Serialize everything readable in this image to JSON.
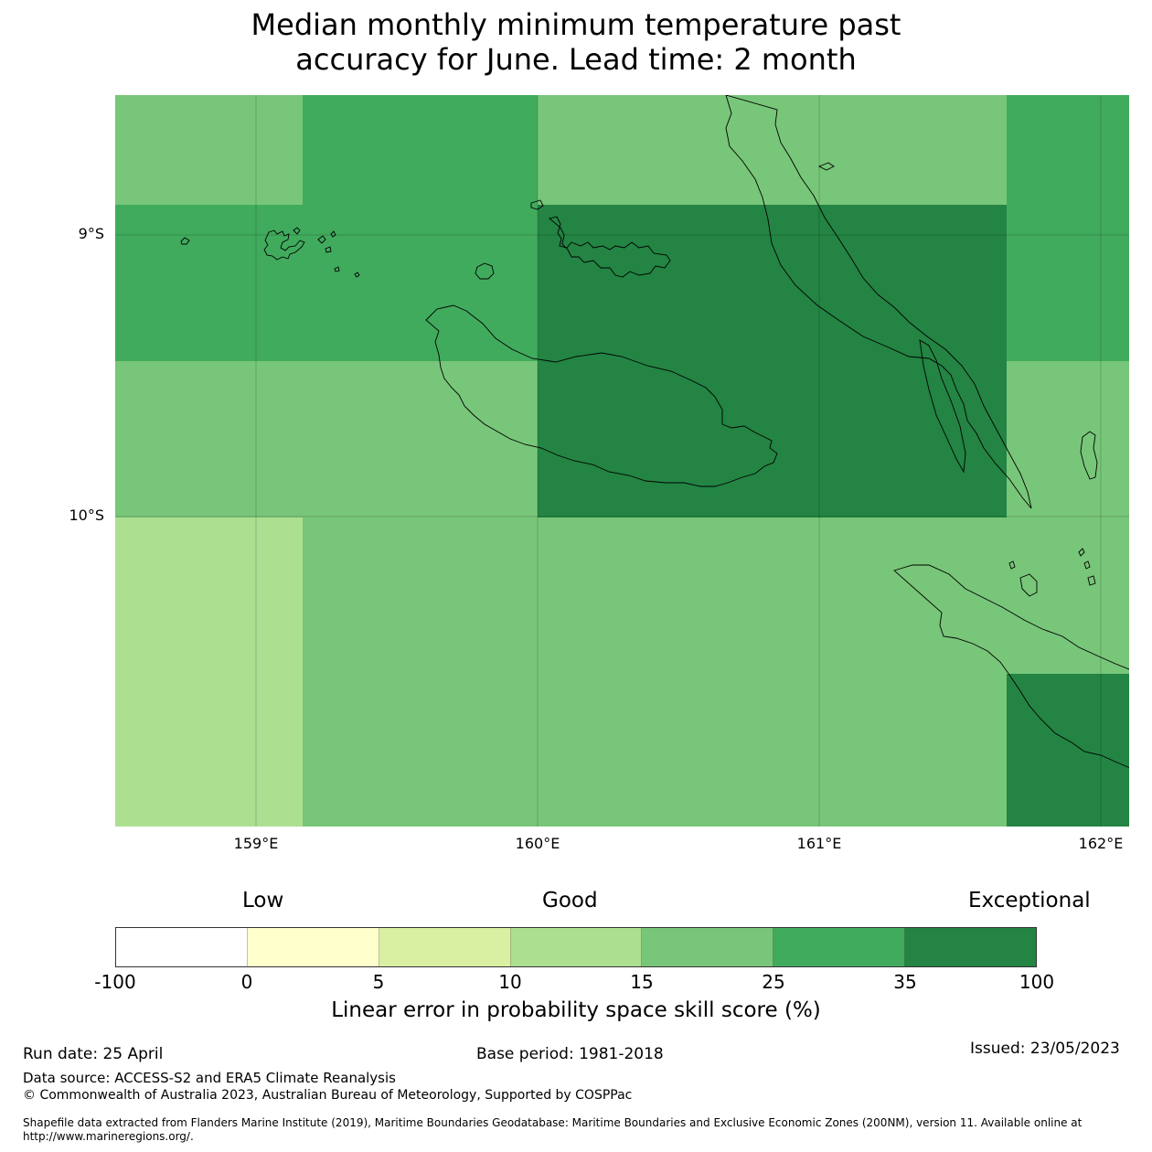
{
  "title": {
    "line1": "Median monthly minimum temperature past",
    "line2": "accuracy for June. Lead time: 2 month"
  },
  "map": {
    "lat_labels": [
      "9°S",
      "10°S"
    ],
    "lon_labels": [
      "159°E",
      "160°E",
      "161°E",
      "162°E"
    ],
    "colors": {
      "c10_15": "#addf91",
      "c15_25": "#78c679",
      "c25_35": "#41ab5d",
      "c35_100": "#238443"
    }
  },
  "colorbar": {
    "categories": {
      "low": "Low",
      "good": "Good",
      "exceptional": "Exceptional"
    },
    "ticks": [
      "-100",
      "0",
      "5",
      "10",
      "15",
      "25",
      "35",
      "100"
    ],
    "colors": [
      "#ffffff",
      "#ffffcc",
      "#d9f0a3",
      "#addf91",
      "#78c679",
      "#41ab5d",
      "#238443"
    ],
    "label": "Linear error in probability space skill score (%)"
  },
  "footer": {
    "run_date": "Run date: 25 April",
    "base_period": "Base period: 1981-2018",
    "issued": "Issued: 23/05/2023",
    "data_source": "Data source: ACCESS-S2 and ERA5 Climate Reanalysis",
    "copyright": "© Commonwealth of Australia 2023, Australian Bureau of Meteorology, Supported by COSPPac",
    "shapefile": "Shapefile data extracted from Flanders Marine Institute (2019), Maritime Boundaries Geodatabase: Maritime Boundaries and Exclusive Economic Zones (200NM), version 11. Available online at http://www.marineregions.org/."
  }
}
